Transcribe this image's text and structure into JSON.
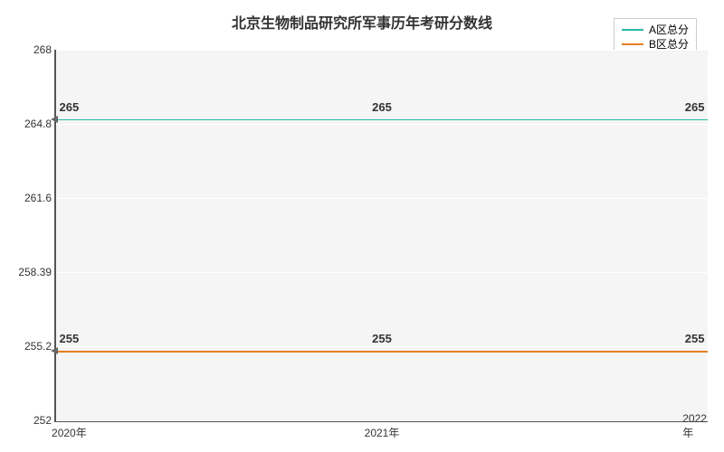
{
  "chart": {
    "type": "line",
    "title": "北京生物制品研究所军事历年考研分数线",
    "title_fontsize": 16,
    "background_color": "#ffffff",
    "plot_background_color": "#f5f5f5",
    "grid_color": "#ffffff",
    "axis_color": "#555555",
    "text_color": "#333333",
    "label_fontsize": 12,
    "data_label_fontsize": 13,
    "ylim": [
      252,
      268
    ],
    "yticks": [
      252,
      255.2,
      258.39,
      261.6,
      264.8,
      268
    ],
    "ytick_labels": [
      "252",
      "255.2",
      "258.39",
      "261.6",
      "264.8",
      "268"
    ],
    "x_categories": [
      "2020年",
      "2021年",
      "2022年"
    ],
    "x_positions_pct": [
      2,
      50,
      98
    ],
    "series": [
      {
        "name": "A区总分",
        "color": "#2ab8a3",
        "values": [
          265,
          265,
          265
        ],
        "labels": [
          "265",
          "265",
          "265"
        ]
      },
      {
        "name": "B区总分",
        "color": "#e67e22",
        "values": [
          255,
          255,
          255
        ],
        "labels": [
          "255",
          "255",
          "255"
        ]
      }
    ],
    "legend": {
      "position": "top-right",
      "border_color": "#cccccc"
    }
  }
}
